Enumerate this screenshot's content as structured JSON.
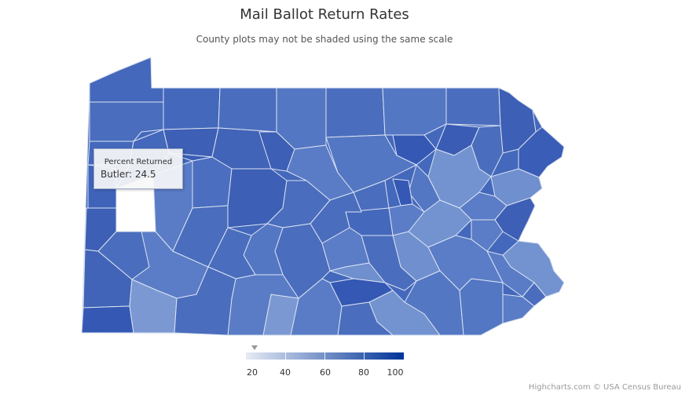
{
  "chart": {
    "title": "Mail Ballot Return Rates",
    "subtitle": "County plots may not be shaded using the same scale"
  },
  "tooltip": {
    "header": "Percent Returned",
    "county": "Butler",
    "value": "24.5"
  },
  "legend": {
    "min": 20,
    "max": 100,
    "marker_value": 24.5,
    "ticks": [
      "20",
      "40",
      "60",
      "80",
      "100"
    ],
    "color_min": "#e6ebf5",
    "color_max": "#003399"
  },
  "credits": "Highcharts.com © USA Census Bureau",
  "chart_data": {
    "type": "choropleth",
    "region": "Pennsylvania",
    "metric": "Percent Returned",
    "highlighted": {
      "county": "Butler",
      "value": 24.5,
      "color": "#ffffff"
    },
    "colors": {
      "darkest": "#2f55b3",
      "dark": "#3d5fb5",
      "mid": "#5a7cc6",
      "light": "#7393d0",
      "lightest": "#8aa4d8",
      "border": "#dbe3f2"
    }
  }
}
